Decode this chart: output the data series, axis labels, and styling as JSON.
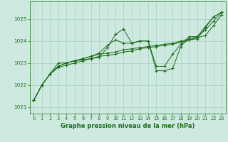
{
  "title": "Graphe pression niveau de la mer (hPa)",
  "bg_color": "#ceeae0",
  "plot_bg_color": "#ceeae0",
  "grid_color": "#aacfbf",
  "line_color": "#1a6b1a",
  "marker_color": "#1a6b1a",
  "xlim": [
    -0.5,
    23.5
  ],
  "ylim": [
    1020.7,
    1025.8
  ],
  "yticks": [
    1021,
    1022,
    1023,
    1024,
    1025
  ],
  "xticks": [
    0,
    1,
    2,
    3,
    4,
    5,
    6,
    7,
    8,
    9,
    10,
    11,
    12,
    13,
    14,
    15,
    16,
    17,
    18,
    19,
    20,
    21,
    22,
    23
  ],
  "series": [
    [
      1021.3,
      1022.0,
      1022.5,
      1022.8,
      1022.9,
      1023.0,
      1023.1,
      1023.2,
      1023.25,
      1023.7,
      1024.3,
      1024.55,
      1023.9,
      1024.0,
      1024.0,
      1022.65,
      1022.65,
      1022.75,
      1023.75,
      1024.2,
      1024.2,
      1024.65,
      1025.1,
      1025.3
    ],
    [
      1021.3,
      1022.0,
      1022.5,
      1022.85,
      1023.0,
      1023.1,
      1023.15,
      1023.2,
      1023.3,
      1023.35,
      1023.4,
      1023.5,
      1023.55,
      1023.65,
      1023.7,
      1023.75,
      1023.8,
      1023.85,
      1023.95,
      1024.05,
      1024.15,
      1024.25,
      1024.7,
      1025.2
    ],
    [
      1021.3,
      1022.0,
      1022.5,
      1022.85,
      1023.0,
      1023.1,
      1023.2,
      1023.3,
      1023.4,
      1023.45,
      1023.5,
      1023.6,
      1023.65,
      1023.7,
      1023.75,
      1023.8,
      1023.85,
      1023.9,
      1024.0,
      1024.1,
      1024.2,
      1024.5,
      1024.9,
      1025.3
    ],
    [
      1021.3,
      1022.0,
      1022.5,
      1023.0,
      1023.0,
      1023.1,
      1023.2,
      1023.3,
      1023.45,
      1023.8,
      1024.05,
      1023.9,
      1023.9,
      1024.0,
      1024.0,
      1022.85,
      1022.85,
      1023.4,
      1023.85,
      1024.05,
      1024.1,
      1024.6,
      1025.1,
      1025.3
    ]
  ]
}
